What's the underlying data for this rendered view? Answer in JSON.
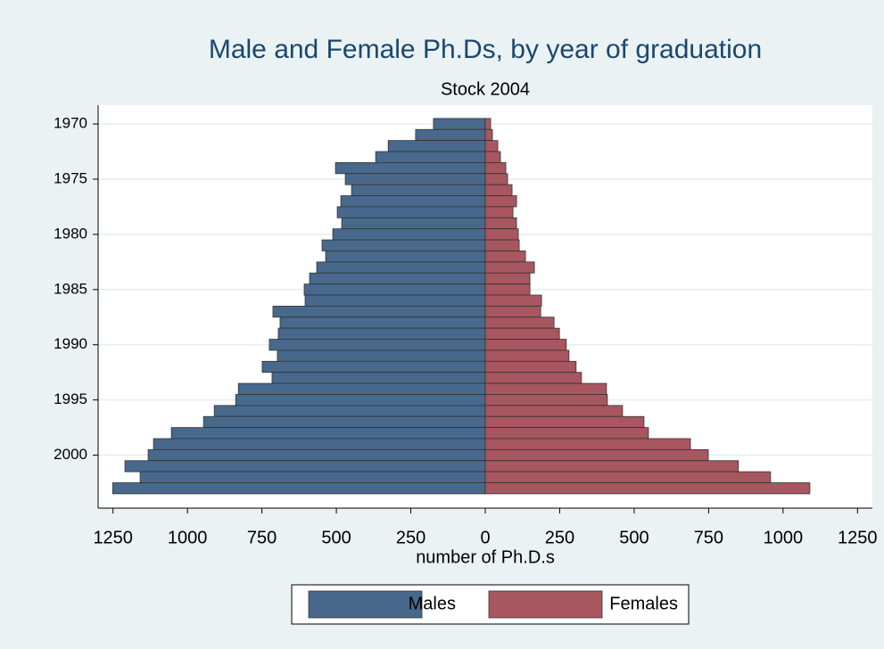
{
  "chart_data": {
    "type": "pyramid",
    "title": "Male and Female Ph.Ds, by year of graduation",
    "subtitle": "Stock 2004",
    "x_label": "number of Ph.D.s",
    "y": [
      1970,
      1971,
      1972,
      1973,
      1974,
      1975,
      1976,
      1977,
      1978,
      1979,
      1980,
      1981,
      1982,
      1983,
      1984,
      1985,
      1986,
      1987,
      1988,
      1989,
      1990,
      1991,
      1992,
      1993,
      1994,
      1995,
      1996,
      1997,
      1998,
      1999,
      2000,
      2001,
      2002,
      2003
    ],
    "series": [
      {
        "name": "Males",
        "color": "#48698b",
        "values": [
          -174,
          -234,
          -326,
          -368,
          -503,
          -470,
          -449,
          -485,
          -497,
          -482,
          -512,
          -548,
          -536,
          -566,
          -590,
          -608,
          -605,
          -713,
          -689,
          -695,
          -725,
          -698,
          -749,
          -716,
          -829,
          -838,
          -910,
          -946,
          -1054,
          -1114,
          -1132,
          -1210,
          -1159,
          -1251
        ]
      },
      {
        "name": "Females",
        "color": "#a8565f",
        "values": [
          18,
          24,
          42,
          51,
          69,
          75,
          90,
          105,
          93,
          105,
          111,
          114,
          135,
          165,
          150,
          150,
          189,
          186,
          231,
          249,
          272,
          281,
          305,
          323,
          407,
          410,
          461,
          533,
          548,
          689,
          749,
          850,
          958,
          1090
        ]
      }
    ],
    "xlim": [
      -1300,
      1300
    ],
    "xticks": [
      {
        "value": -1250,
        "label": "1250"
      },
      {
        "value": -1000,
        "label": "1000"
      },
      {
        "value": -750,
        "label": "750"
      },
      {
        "value": -500,
        "label": "500"
      },
      {
        "value": -250,
        "label": "250"
      },
      0,
      250,
      500,
      750,
      1000,
      1250
    ],
    "ylim": [
      2004.8,
      1968.3
    ],
    "yticks": [
      1970,
      1975,
      1980,
      1985,
      1990,
      1995,
      2000
    ],
    "grid": true,
    "legend": "bottom"
  }
}
